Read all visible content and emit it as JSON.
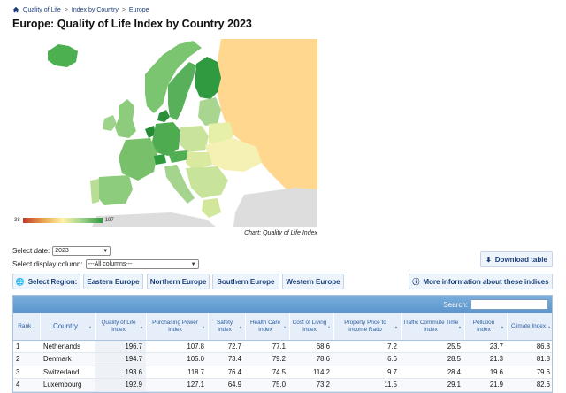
{
  "breadcrumb": {
    "items": [
      "Quality of Life",
      "Index by Country",
      "Europe"
    ],
    "separator": ">"
  },
  "page_title": "Europe: Quality of Life Index by Country 2023",
  "map": {
    "legend_min": "38",
    "legend_max": "197",
    "caption": "Chart: Quality of Life Index"
  },
  "controls": {
    "date_label": "Select date:",
    "date_value": "2023",
    "column_label": "Select display column:",
    "column_value": "---All columns---"
  },
  "buttons": {
    "download": "Download table",
    "select_region": "Select Region:",
    "regions": [
      "Eastern Europe",
      "Northern Europe",
      "Southern Europe",
      "Western Europe"
    ],
    "info": "More information about these indices"
  },
  "table": {
    "search_label": "Search:",
    "headers": [
      "Rank",
      "Country",
      "Quality of Life Index",
      "Purchasing Power Index",
      "Safety Index",
      "Health Care Index",
      "Cost of Living Index",
      "Property Price to Income Ratio",
      "Traffic Commute Time Index",
      "Pollution Index",
      "Climate Index"
    ],
    "rows": [
      [
        "1",
        "Netherlands",
        "196.7",
        "107.8",
        "72.7",
        "77.1",
        "68.6",
        "7.2",
        "25.5",
        "23.7",
        "86.8"
      ],
      [
        "2",
        "Denmark",
        "194.7",
        "105.0",
        "73.4",
        "79.2",
        "78.6",
        "6.6",
        "28.5",
        "21.3",
        "81.8"
      ],
      [
        "3",
        "Switzerland",
        "193.6",
        "118.7",
        "76.4",
        "74.5",
        "114.2",
        "9.7",
        "28.4",
        "19.6",
        "79.6"
      ],
      [
        "4",
        "Luxembourg",
        "192.9",
        "127.1",
        "64.9",
        "75.0",
        "73.2",
        "11.5",
        "29.1",
        "21.9",
        "82.6"
      ]
    ]
  },
  "colors": {
    "accent": "#1b3f78",
    "header_bar": "#5a95cc",
    "high": "#2f9a3f",
    "low": "#c0392b",
    "no_data": "#ffd78f"
  }
}
